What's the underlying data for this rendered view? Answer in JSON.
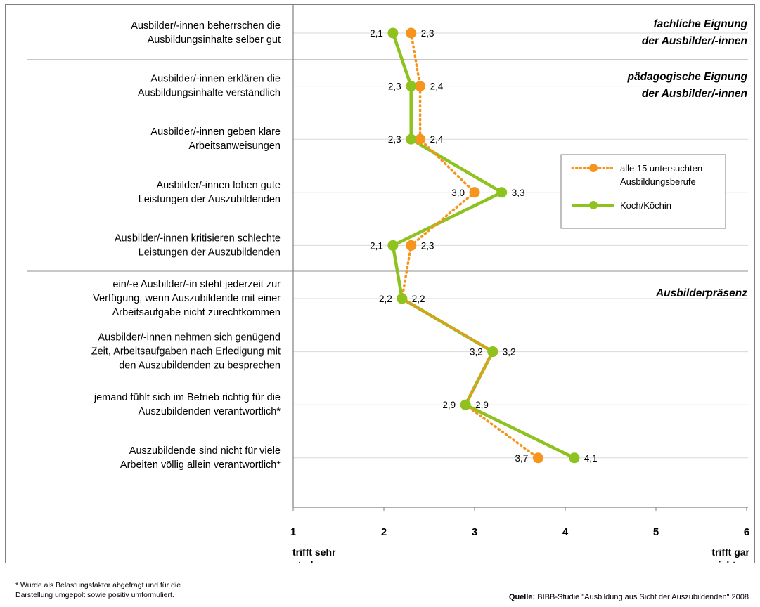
{
  "chart_data": {
    "type": "line",
    "orientation": "horizontal",
    "categories": [
      [
        "Ausbilder/-innen beherrschen die",
        "Ausbildungsinhalte selber gut"
      ],
      [
        "Ausbilder/-innen erklären die",
        "Ausbildungsinhalte verständlich"
      ],
      [
        "Ausbilder/-innen geben klare",
        "Arbeitsanweisungen"
      ],
      [
        "Ausbilder/-innen loben gute",
        "Leistungen der Auszubildenden"
      ],
      [
        "Ausbilder/-innen kritisieren schlechte",
        "Leistungen der Auszubildenden"
      ],
      [
        "ein/-e Ausbilder/-in steht jederzeit zur",
        "Verfügung, wenn Auszubildende mit einer",
        "Arbeitsaufgabe nicht zurechtkommen"
      ],
      [
        "Ausbilder/-innen nehmen sich genügend",
        "Zeit, Arbeitsaufgaben nach Erledigung mit",
        "den Auszubildenden zu besprechen"
      ],
      [
        "jemand fühlt sich im Betrieb richtig für die",
        "Auszubildenden verantwortlich*"
      ],
      [
        "Auszubildende sind nicht für viele",
        "Arbeiten völlig allein verantwortlich*"
      ]
    ],
    "series": [
      {
        "name": "alle 15 untersuchten Ausbildungsberufe",
        "color": "#f7941d",
        "style": "dotted",
        "values": [
          2.3,
          2.4,
          2.4,
          3.0,
          2.3,
          2.2,
          3.2,
          2.9,
          3.7
        ],
        "labels": [
          "2,3",
          "2,4",
          "2,4",
          "3,0",
          "2,3",
          "2,2",
          "3,2",
          "2,9",
          "3,7"
        ]
      },
      {
        "name": "Koch/Köchin",
        "color": "#8dc21f",
        "style": "solid",
        "values": [
          2.1,
          2.3,
          2.3,
          3.3,
          2.1,
          2.2,
          3.2,
          2.9,
          4.1
        ],
        "labels": [
          "2,1",
          "2,3",
          "2,3",
          "3,3",
          "2,1",
          "2,2",
          "3,2",
          "2,9",
          "4,1"
        ]
      }
    ],
    "x_range": [
      1,
      6
    ],
    "x_ticks": [
      "1",
      "2",
      "3",
      "4",
      "5",
      "6"
    ],
    "x_min_label": [
      "trifft sehr",
      "stark zu"
    ],
    "x_max_label": [
      "trifft gar",
      "nicht zu"
    ],
    "group_labels": [
      [
        "fachliche Eignung",
        "der Ausbilder/-innen"
      ],
      [
        "pädagogische Eignung",
        "der Ausbilder/-innen"
      ],
      [
        "Ausbilderpräsenz"
      ]
    ],
    "legend_position": "right",
    "grid": true
  },
  "footnote": {
    "line1": "* Wurde als Belastungsfaktor abgefragt und für die",
    "line2": "Darstellung umgepolt sowie positiv umformuliert."
  },
  "source": {
    "label": "Quelle:",
    "text": " BIBB-Studie \"Ausbildung aus Sicht der Auszubildenden\" 2008"
  }
}
